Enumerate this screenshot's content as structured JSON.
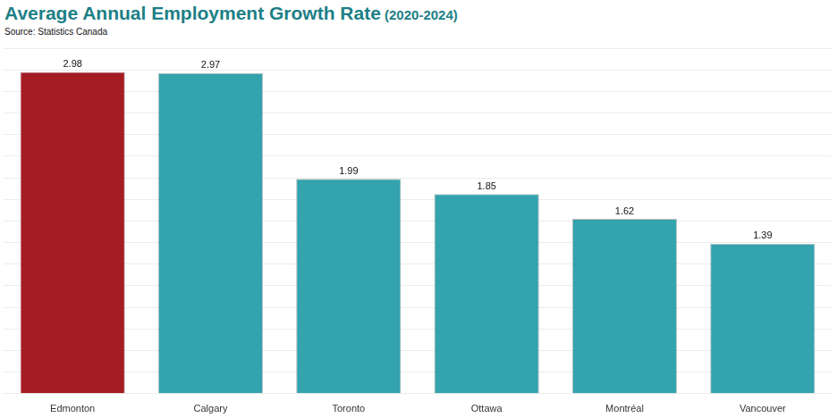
{
  "chart_data": {
    "type": "bar",
    "title": "Average Annual Employment Growth Rate (2020-2024)",
    "subtitle": "Source: Statistics Canada",
    "categories": [
      "Edmonton",
      "Calgary",
      "Toronto",
      "Ottawa",
      "Montréal",
      "Vancouver"
    ],
    "values": [
      2.98,
      2.97,
      1.99,
      1.85,
      1.62,
      1.39
    ],
    "colors": [
      "#a51c22",
      "#33a3ad",
      "#33a3ad",
      "#33a3ad",
      "#33a3ad",
      "#33a3ad"
    ],
    "ylim": [
      0,
      3.2
    ],
    "yticks": [
      0,
      0.2,
      0.4,
      0.6,
      0.8,
      1,
      1.2,
      1.4,
      1.6,
      1.8,
      2,
      2.2,
      2.4,
      2.6,
      2.8,
      3,
      3.2
    ],
    "grid": true,
    "data_labels": true,
    "tick_labels": "x"
  }
}
